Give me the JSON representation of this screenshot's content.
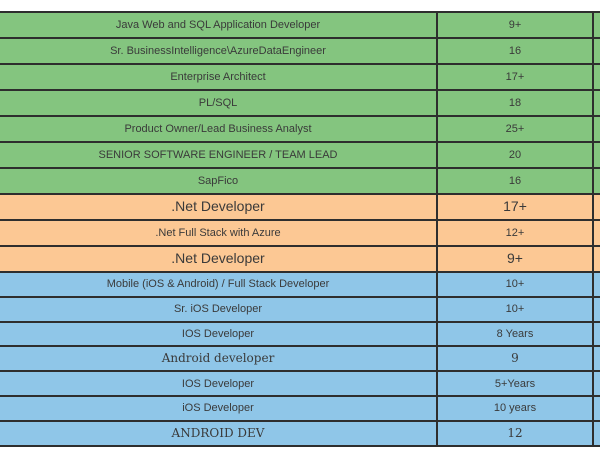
{
  "colors": {
    "row_green": "#84C57F",
    "row_orange": "#FCC894",
    "row_blue": "#8FC6E8",
    "grid_border": "#2E2E2E",
    "text": "#3A3A3A",
    "background": "#FFFFFF"
  },
  "chart_data": {
    "type": "table",
    "column_headers_visible": false,
    "rows": [
      {
        "label": "Java Web and SQL Application Developer",
        "value": "9+",
        "color_group": "green"
      },
      {
        "label": "Sr. BusinessIntelligence\\AzureDataEngineer",
        "value": "16",
        "color_group": "green"
      },
      {
        "label": "Enterprise Architect",
        "value": "17+",
        "color_group": "green"
      },
      {
        "label": "PL/SQL",
        "value": "18",
        "color_group": "green"
      },
      {
        "label": "Product Owner/Lead Business Analyst",
        "value": "25+",
        "color_group": "green"
      },
      {
        "label": "SENIOR SOFTWARE ENGINEER / TEAM LEAD",
        "value": "20",
        "color_group": "green"
      },
      {
        "label": "SapFico",
        "value": "16",
        "color_group": "green"
      },
      {
        "label": ".Net Developer",
        "value": "17+",
        "color_group": "orange"
      },
      {
        "label": ".Net Full Stack with Azure",
        "value": "12+",
        "color_group": "orange"
      },
      {
        "label": ".Net Developer",
        "value": "9+",
        "color_group": "orange"
      },
      {
        "label": "Mobile (iOS & Android) / Full Stack Developer",
        "value": "10+",
        "color_group": "blue"
      },
      {
        "label": "Sr. iOS Developer",
        "value": "10+",
        "color_group": "blue"
      },
      {
        "label": "IOS Developer",
        "value": "8 Years",
        "color_group": "blue"
      },
      {
        "label": "Android developer",
        "value": "9",
        "color_group": "blue"
      },
      {
        "label": "IOS Developer",
        "value": "5+Years",
        "color_group": "blue"
      },
      {
        "label": "iOS Developer",
        "value": "10 years",
        "color_group": "blue"
      },
      {
        "label": "ANDROID DEV",
        "value": "12",
        "color_group": "blue"
      }
    ]
  }
}
